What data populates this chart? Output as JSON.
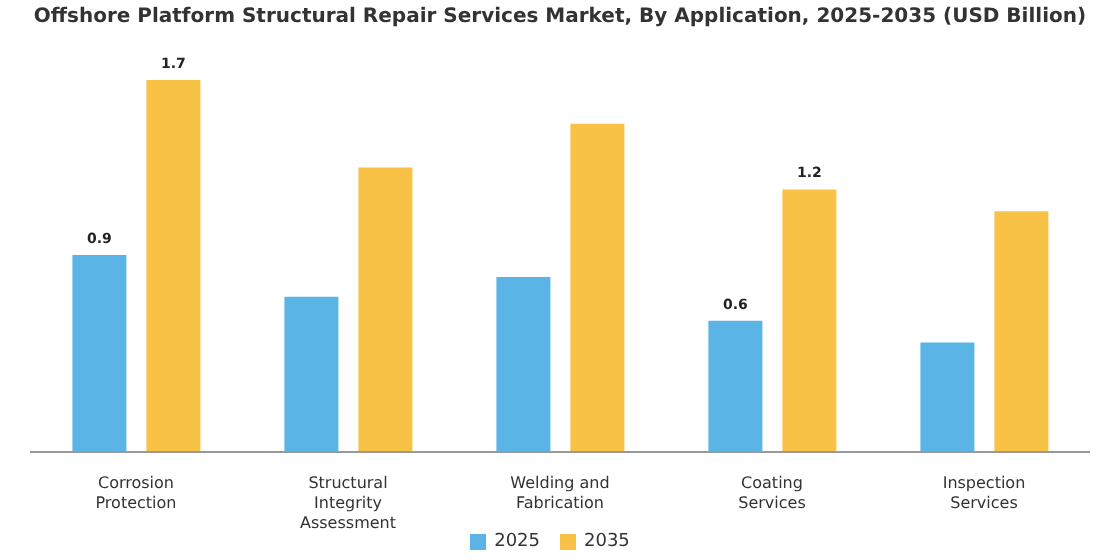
{
  "chart_data": {
    "type": "bar",
    "title": "Offshore Platform Structural Repair Services Market, By Application, 2025-2035 (USD Billion)",
    "categories": [
      "Corrosion Protection",
      "Structural Integrity Assessment",
      "Welding and Fabrication",
      "Coating Services",
      "Inspection Services"
    ],
    "series": [
      {
        "name": "2025",
        "color": "#5ab4e5",
        "values": [
          0.9,
          0.71,
          0.8,
          0.6,
          0.5
        ],
        "value_labels": [
          "0.9",
          null,
          null,
          "0.6",
          null
        ]
      },
      {
        "name": "2035",
        "color": "#f8c247",
        "values": [
          1.7,
          1.3,
          1.5,
          1.2,
          1.1
        ],
        "value_labels": [
          "1.7",
          null,
          null,
          "1.2",
          null
        ]
      }
    ],
    "legend": "bottom"
  }
}
